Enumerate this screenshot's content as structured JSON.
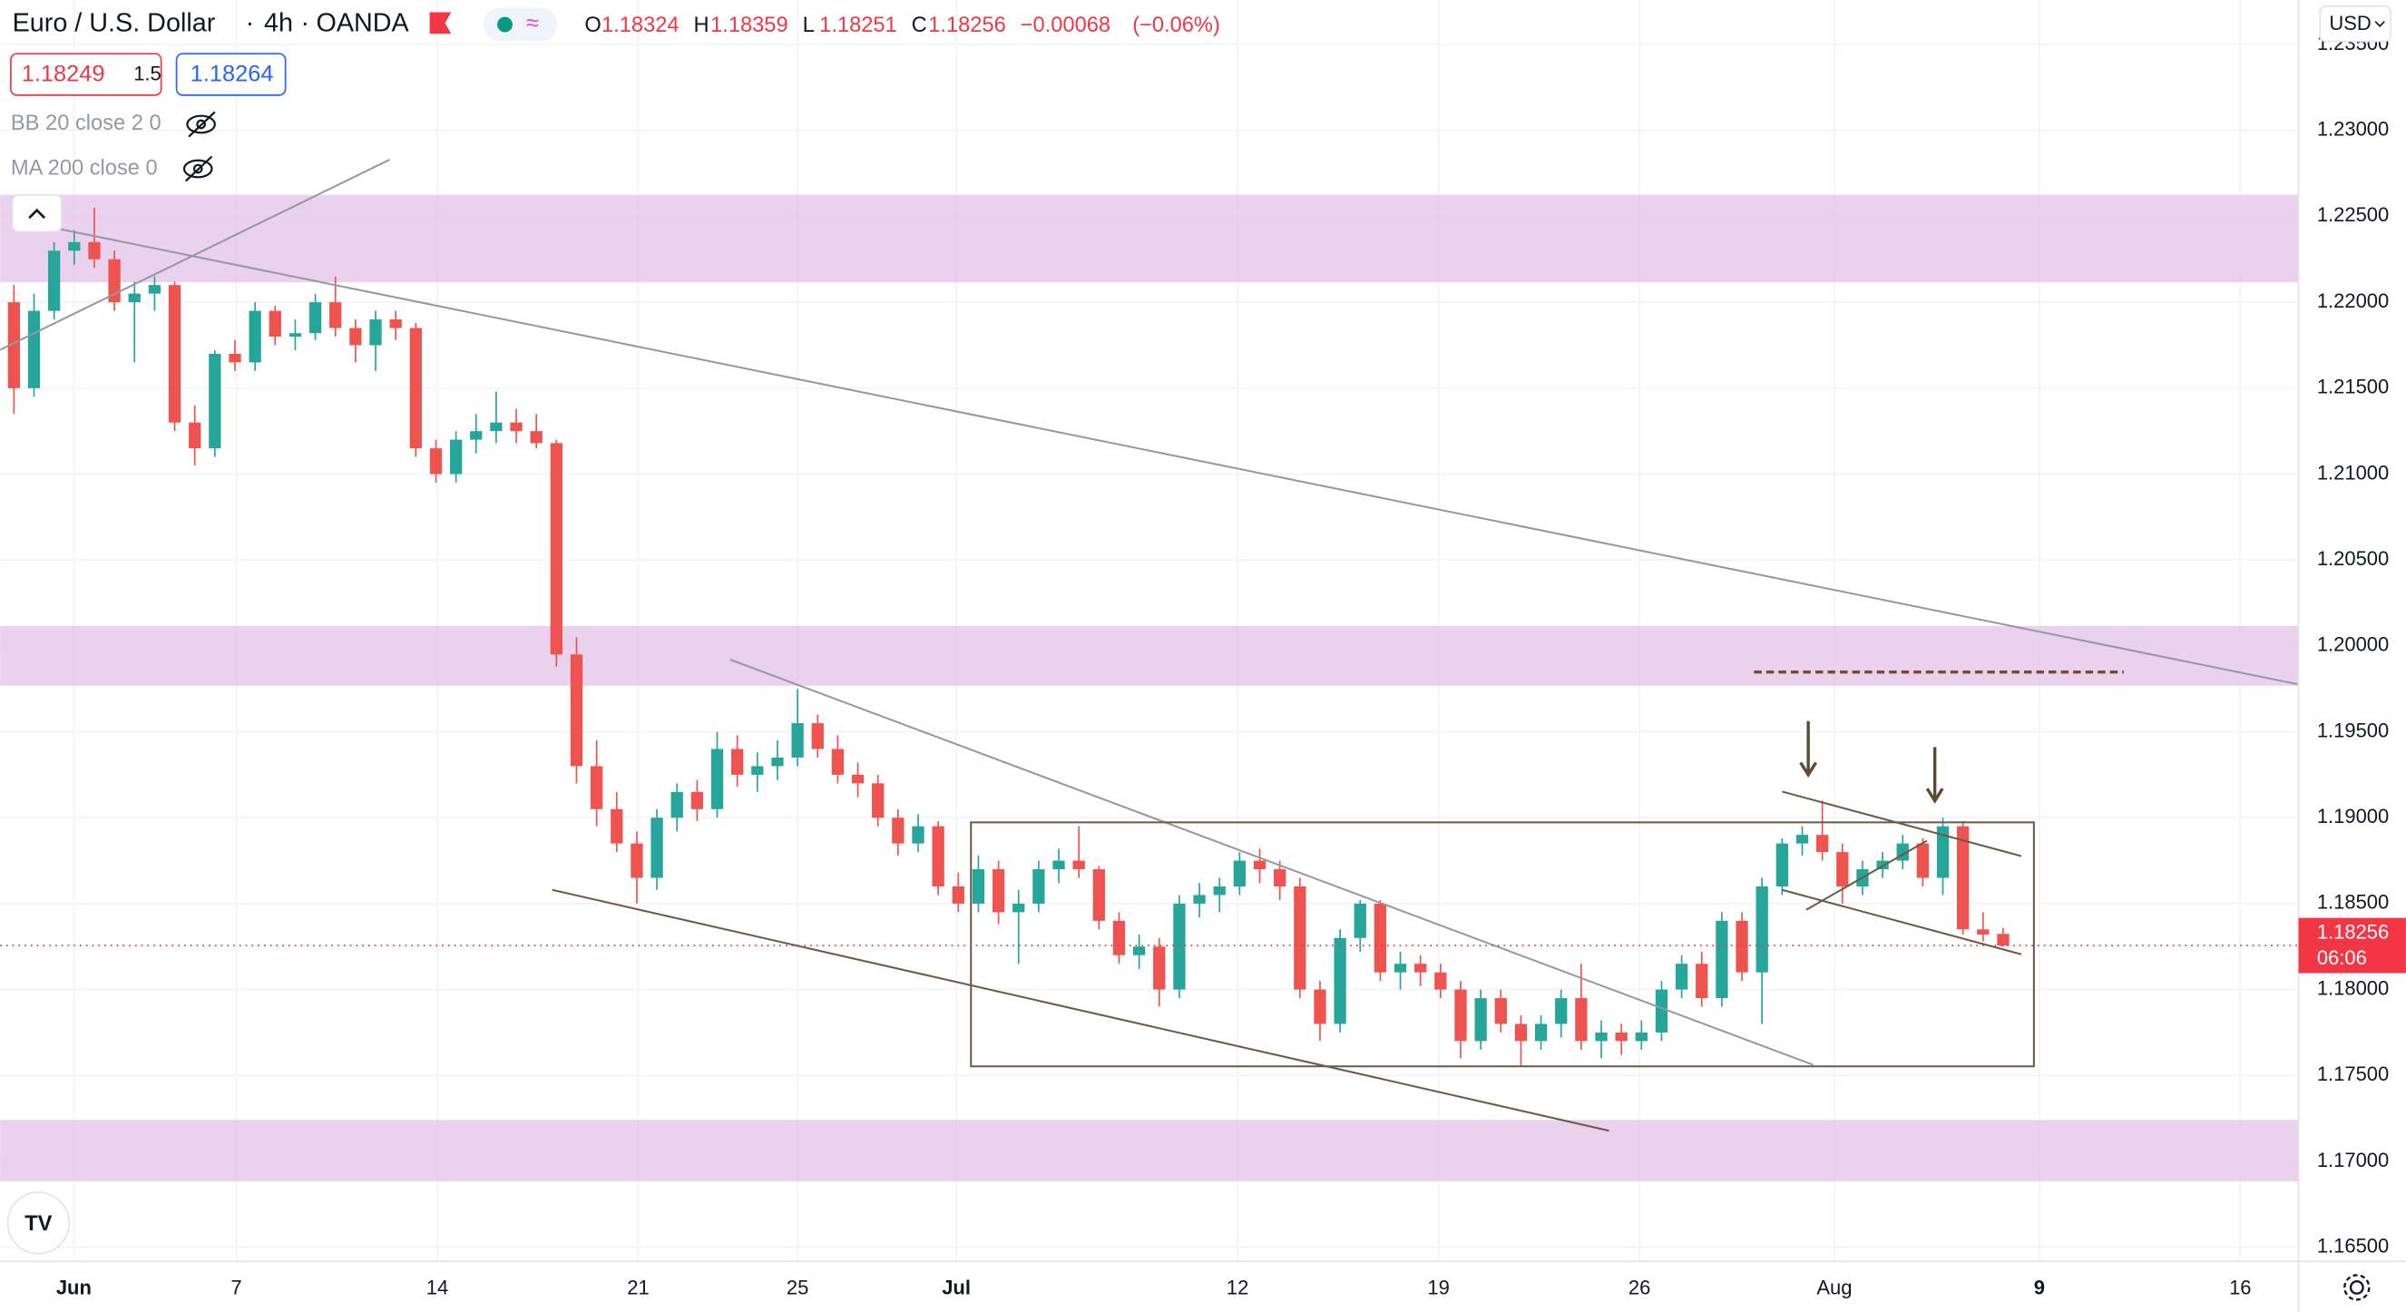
{
  "header": {
    "symbol": "Euro / U.S. Dollar",
    "interval": "4h",
    "exchange": "OANDA",
    "ohlc_labels": [
      "O",
      "H",
      "L",
      "C"
    ],
    "change": "−0.00068",
    "change_pct": "(−0.06%)",
    "bid": "1.18249",
    "spread": "1.5",
    "ask": "1.18264",
    "indicators": [
      "BB 20 close 2 0",
      "MA 200 close 0"
    ],
    "currency": "USD",
    "countdown": "06:06"
  },
  "chart_data": {
    "type": "candlestick",
    "open": [
      1.22,
      1.215,
      1.2195,
      1.223,
      1.2235,
      1.2225,
      1.22,
      1.2205,
      1.221,
      1.213,
      1.2115,
      1.217,
      1.2165,
      1.2195,
      1.218,
      1.2182,
      1.22,
      1.2185,
      1.2175,
      1.219,
      1.2185,
      1.2115,
      1.21,
      1.212,
      1.2125,
      1.213,
      1.2125,
      1.2118,
      1.1995,
      1.193,
      1.1905,
      1.1885,
      1.1865,
      1.19,
      1.1915,
      1.1905,
      1.194,
      1.1925,
      1.193,
      1.1935,
      1.1955,
      1.194,
      1.1925,
      1.192,
      1.19,
      1.1885,
      1.1895,
      1.186,
      1.185,
      1.187,
      1.1845,
      1.185,
      1.187,
      1.1875,
      1.187,
      1.184,
      1.182,
      1.1825,
      1.18,
      1.185,
      1.1855,
      1.186,
      1.1875,
      1.187,
      1.186,
      1.18,
      1.178,
      1.183,
      1.185,
      1.181,
      1.1815,
      1.181,
      1.18,
      1.177,
      1.1795,
      1.178,
      1.177,
      1.178,
      1.1795,
      1.177,
      1.1775,
      1.177,
      1.1775,
      1.18,
      1.1815,
      1.1795,
      1.184,
      1.181,
      1.186,
      1.1885,
      1.189,
      1.188,
      1.186,
      1.187,
      1.1875,
      1.1885,
      1.1865,
      1.1895,
      1.1835,
      1.18324
    ],
    "high": [
      1.221,
      1.2205,
      1.2235,
      1.2242,
      1.2255,
      1.223,
      1.2212,
      1.2215,
      1.2212,
      1.214,
      1.2172,
      1.2178,
      1.22,
      1.2198,
      1.219,
      1.2205,
      1.2215,
      1.219,
      1.2195,
      1.2195,
      1.2188,
      1.212,
      1.2125,
      1.2135,
      1.2148,
      1.2138,
      1.2135,
      1.212,
      1.2005,
      1.1945,
      1.1915,
      1.1892,
      1.1905,
      1.192,
      1.1922,
      1.195,
      1.1948,
      1.1938,
      1.1945,
      1.1975,
      1.196,
      1.1948,
      1.1932,
      1.1925,
      1.1905,
      1.1902,
      1.1898,
      1.1868,
      1.1878,
      1.1875,
      1.1858,
      1.1875,
      1.1882,
      1.1895,
      1.1872,
      1.1845,
      1.1832,
      1.183,
      1.1855,
      1.1862,
      1.1865,
      1.188,
      1.1882,
      1.1875,
      1.1865,
      1.1805,
      1.1835,
      1.1852,
      1.1852,
      1.1822,
      1.182,
      1.1815,
      1.1805,
      1.18,
      1.18,
      1.1785,
      1.1785,
      1.18,
      1.1815,
      1.1782,
      1.178,
      1.1782,
      1.1805,
      1.182,
      1.1822,
      1.1845,
      1.1845,
      1.1865,
      1.1888,
      1.1895,
      1.191,
      1.1885,
      1.1875,
      1.188,
      1.189,
      1.1888,
      1.19,
      1.1898,
      1.1845,
      1.18359
    ],
    "low": [
      1.2135,
      1.2145,
      1.219,
      1.2222,
      1.222,
      1.2195,
      1.2165,
      1.2195,
      1.2125,
      1.2105,
      1.211,
      1.216,
      1.216,
      1.2175,
      1.2172,
      1.2178,
      1.218,
      1.2165,
      1.216,
      1.2178,
      1.211,
      1.2095,
      1.2095,
      1.2112,
      1.2118,
      1.2118,
      1.2115,
      1.1988,
      1.192,
      1.1895,
      1.188,
      1.185,
      1.1858,
      1.1892,
      1.1898,
      1.19,
      1.1918,
      1.1915,
      1.1922,
      1.193,
      1.1935,
      1.192,
      1.1912,
      1.1895,
      1.1878,
      1.188,
      1.1855,
      1.1845,
      1.1845,
      1.1838,
      1.1815,
      1.1845,
      1.1862,
      1.1865,
      1.1835,
      1.1815,
      1.1812,
      1.179,
      1.1795,
      1.1842,
      1.1845,
      1.1855,
      1.1862,
      1.1852,
      1.1795,
      1.177,
      1.1775,
      1.1822,
      1.1805,
      1.18,
      1.1802,
      1.1795,
      1.176,
      1.1765,
      1.1775,
      1.1755,
      1.1765,
      1.1772,
      1.1765,
      1.176,
      1.1762,
      1.1765,
      1.177,
      1.1795,
      1.179,
      1.179,
      1.1805,
      1.178,
      1.1855,
      1.1878,
      1.1875,
      1.185,
      1.1855,
      1.1865,
      1.187,
      1.186,
      1.1855,
      1.1832,
      1.1828,
      1.18251
    ],
    "close": [
      1.215,
      1.2195,
      1.223,
      1.2235,
      1.2225,
      1.22,
      1.2205,
      1.221,
      1.213,
      1.2115,
      1.217,
      1.2165,
      1.2195,
      1.218,
      1.2182,
      1.22,
      1.2185,
      1.2175,
      1.219,
      1.2185,
      1.2115,
      1.21,
      1.212,
      1.2125,
      1.213,
      1.2125,
      1.2118,
      1.1995,
      1.193,
      1.1905,
      1.1885,
      1.1865,
      1.19,
      1.1915,
      1.1905,
      1.194,
      1.1925,
      1.193,
      1.1935,
      1.1955,
      1.194,
      1.1925,
      1.192,
      1.19,
      1.1885,
      1.1895,
      1.186,
      1.185,
      1.187,
      1.1845,
      1.185,
      1.187,
      1.1875,
      1.187,
      1.184,
      1.182,
      1.1825,
      1.18,
      1.185,
      1.1855,
      1.186,
      1.1875,
      1.187,
      1.186,
      1.18,
      1.178,
      1.183,
      1.185,
      1.181,
      1.1815,
      1.181,
      1.18,
      1.177,
      1.1795,
      1.178,
      1.177,
      1.178,
      1.1795,
      1.177,
      1.1775,
      1.177,
      1.1775,
      1.18,
      1.1815,
      1.1795,
      1.184,
      1.181,
      1.186,
      1.1885,
      1.189,
      1.188,
      1.186,
      1.187,
      1.1875,
      1.1885,
      1.1865,
      1.1895,
      1.1835,
      1.1832,
      1.18256
    ],
    "up_color": "#26a69a",
    "down_color": "#ef5350",
    "xlim": [
      -0.69,
      113.7
    ],
    "ylim": [
      1.16418,
      1.23759
    ],
    "xticks": [
      {
        "value": 2.98,
        "label": "Jun"
      },
      {
        "value": 11.07,
        "label": "7"
      },
      {
        "value": 21.07,
        "label": "14"
      },
      {
        "value": 31.07,
        "label": "21"
      },
      {
        "value": 39.0,
        "label": "25"
      },
      {
        "value": 46.9,
        "label": "Jul"
      },
      {
        "value": 60.9,
        "label": "12"
      },
      {
        "value": 70.9,
        "label": "19"
      },
      {
        "value": 80.9,
        "label": "26"
      },
      {
        "value": 90.6,
        "label": "Aug"
      },
      {
        "value": 100.8,
        "label": "9"
      },
      {
        "value": 110.8,
        "label": "16"
      }
    ],
    "yticks": [
      {
        "value": 1.165,
        "label": "1.16500"
      },
      {
        "value": 1.17,
        "label": "1.17000"
      },
      {
        "value": 1.175,
        "label": "1.17500"
      },
      {
        "value": 1.18,
        "label": "1.18000"
      },
      {
        "value": 1.185,
        "label": "1.18500"
      },
      {
        "value": 1.19,
        "label": "1.19000"
      },
      {
        "value": 1.195,
        "label": "1.19500"
      },
      {
        "value": 1.2,
        "label": "1.20000"
      },
      {
        "value": 1.205,
        "label": "1.20500"
      },
      {
        "value": 1.21,
        "label": "1.21000"
      },
      {
        "value": 1.215,
        "label": "1.21500"
      },
      {
        "value": 1.22,
        "label": "1.22000"
      },
      {
        "value": 1.225,
        "label": "1.22500"
      },
      {
        "value": 1.23,
        "label": "1.23000"
      },
      {
        "value": 1.235,
        "label": "1.23500"
      }
    ],
    "grid": true,
    "last_price_color": "#f23645",
    "zones": [
      {
        "low": 1.22116,
        "high": 1.22625,
        "color": "#e1bee7"
      },
      {
        "low": 1.19768,
        "high": 1.20116,
        "color": "#e1bee7"
      },
      {
        "low": 1.16884,
        "high": 1.17241,
        "color": "#e1bee7"
      }
    ],
    "lines": [
      {
        "x": [
          -0.69,
          18.7
        ],
        "y": [
          1.21723,
          1.2283
        ],
        "color": "#9598a1"
      },
      {
        "x": [
          -0.08,
          113.66
        ],
        "y": [
          1.22482,
          1.19777
        ],
        "color": "#9598a1"
      },
      {
        "x": [
          35.65,
          89.54
        ],
        "y": [
          1.1992,
          1.17562
        ],
        "color": "#9598a1"
      },
      {
        "x": [
          26.79,
          79.39
        ],
        "y": [
          1.1858,
          1.17178
        ],
        "color": "#6d5a45"
      },
      {
        "x": [
          88.0,
          99.9
        ],
        "y": [
          1.19152,
          1.18777
        ],
        "color": "#6d5a45"
      },
      {
        "x": [
          88.0,
          99.9
        ],
        "y": [
          1.1858,
          1.18205
        ],
        "color": "#6d5a45"
      },
      {
        "x": [
          89.2,
          95.2
        ],
        "y": [
          1.18464,
          1.18866
        ],
        "color": "#6d5a45"
      },
      {
        "x": [
          86.6,
          105.0
        ],
        "y": [
          1.19848,
          1.19848
        ],
        "color": "#7b4a2e",
        "dashed": true
      }
    ],
    "rectangles": [
      {
        "x": [
          47.63,
          100.53
        ],
        "y": [
          1.17553,
          1.18973
        ],
        "color": "#6d5a45"
      }
    ],
    "arrows": [
      {
        "x": 89.3,
        "y": [
          1.19562,
          1.1925
        ],
        "color": "#5d4a2f"
      },
      {
        "x": 95.6,
        "y": [
          1.19411,
          1.19098
        ],
        "color": "#5d4a2f"
      }
    ]
  }
}
